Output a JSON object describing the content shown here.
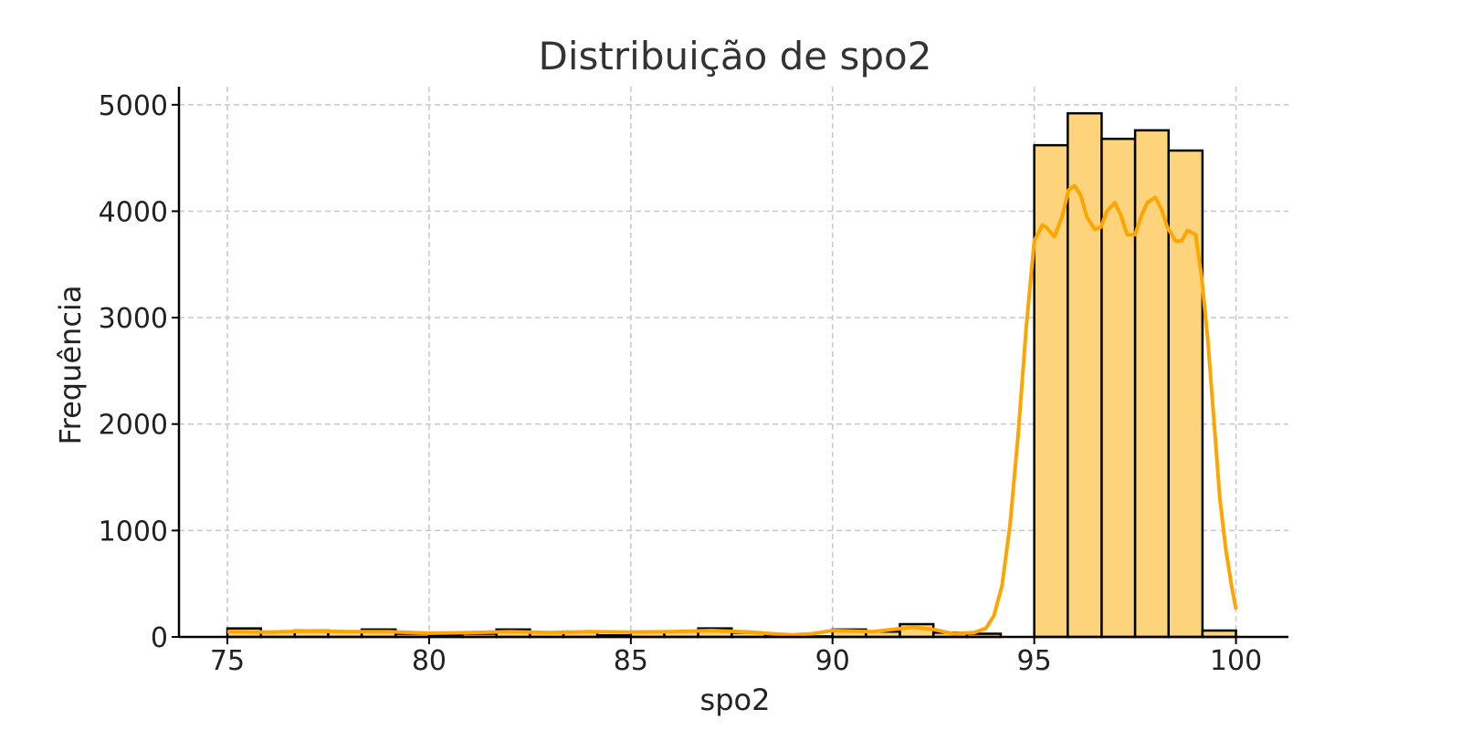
{
  "chart_data": {
    "type": "bar",
    "title": "Distribuição de spo2",
    "xlabel": "spo2",
    "ylabel": "Frequência",
    "xlim": [
      73.8,
      101.3
    ],
    "ylim": [
      0,
      5170
    ],
    "xticks": [
      75,
      80,
      85,
      90,
      95,
      100
    ],
    "yticks": [
      0,
      1000,
      2000,
      3000,
      4000,
      5000
    ],
    "grid": true,
    "bins": [
      {
        "x0": 75.0,
        "x1": 75.83,
        "count": 80
      },
      {
        "x0": 75.83,
        "x1": 76.67,
        "count": 50
      },
      {
        "x0": 76.67,
        "x1": 77.5,
        "count": 60
      },
      {
        "x0": 77.5,
        "x1": 78.33,
        "count": 50
      },
      {
        "x0": 78.33,
        "x1": 79.17,
        "count": 70
      },
      {
        "x0": 79.17,
        "x1": 80.0,
        "count": 30
      },
      {
        "x0": 80.0,
        "x1": 80.83,
        "count": 20
      },
      {
        "x0": 80.83,
        "x1": 81.67,
        "count": 30
      },
      {
        "x0": 81.67,
        "x1": 82.5,
        "count": 70
      },
      {
        "x0": 82.5,
        "x1": 83.33,
        "count": 40
      },
      {
        "x0": 83.33,
        "x1": 84.17,
        "count": 50
      },
      {
        "x0": 84.17,
        "x1": 85.0,
        "count": 15
      },
      {
        "x0": 85.0,
        "x1": 85.83,
        "count": 50
      },
      {
        "x0": 85.83,
        "x1": 86.67,
        "count": 50
      },
      {
        "x0": 86.67,
        "x1": 87.5,
        "count": 80
      },
      {
        "x0": 87.5,
        "x1": 88.33,
        "count": 40
      },
      {
        "x0": 88.33,
        "x1": 89.17,
        "count": 20
      },
      {
        "x0": 89.17,
        "x1": 90.0,
        "count": 5
      },
      {
        "x0": 90.0,
        "x1": 90.83,
        "count": 70
      },
      {
        "x0": 90.83,
        "x1": 91.67,
        "count": 50
      },
      {
        "x0": 91.67,
        "x1": 92.5,
        "count": 120
      },
      {
        "x0": 92.5,
        "x1": 93.33,
        "count": 40
      },
      {
        "x0": 93.33,
        "x1": 94.17,
        "count": 30
      },
      {
        "x0": 94.17,
        "x1": 95.0,
        "count": 0
      },
      {
        "x0": 95.0,
        "x1": 95.83,
        "count": 4620
      },
      {
        "x0": 95.83,
        "x1": 96.67,
        "count": 4920
      },
      {
        "x0": 96.67,
        "x1": 97.5,
        "count": 4680
      },
      {
        "x0": 97.5,
        "x1": 98.33,
        "count": 4760
      },
      {
        "x0": 98.33,
        "x1": 99.17,
        "count": 4570
      },
      {
        "x0": 99.17,
        "x1": 100.0,
        "count": 60
      }
    ],
    "kde": {
      "x": [
        75,
        76,
        77,
        78,
        79,
        80,
        81,
        82,
        83,
        84,
        85,
        86,
        87,
        88,
        88.5,
        89,
        89.5,
        90,
        90.5,
        91,
        91.5,
        92,
        92.5,
        93,
        93.5,
        93.8,
        94.0,
        94.2,
        94.4,
        94.6,
        94.8,
        95.0,
        95.2,
        95.3,
        95.5,
        95.7,
        95.85,
        96.0,
        96.15,
        96.3,
        96.5,
        96.65,
        96.8,
        97.0,
        97.15,
        97.3,
        97.5,
        97.65,
        97.8,
        98.0,
        98.15,
        98.3,
        98.5,
        98.65,
        98.8,
        99.0,
        99.15,
        99.3,
        99.45,
        99.6,
        99.75,
        99.9,
        100.0
      ],
      "y": [
        50,
        45,
        55,
        50,
        50,
        35,
        40,
        50,
        40,
        50,
        45,
        50,
        60,
        45,
        30,
        20,
        30,
        60,
        55,
        50,
        70,
        90,
        70,
        30,
        40,
        80,
        200,
        480,
        1050,
        1900,
        2900,
        3720,
        3870,
        3850,
        3760,
        3960,
        4200,
        4240,
        4150,
        3950,
        3830,
        3850,
        4000,
        4080,
        3960,
        3780,
        3780,
        3950,
        4080,
        4130,
        4020,
        3850,
        3720,
        3720,
        3820,
        3780,
        3380,
        2800,
        2050,
        1300,
        820,
        460,
        260
      ]
    }
  }
}
